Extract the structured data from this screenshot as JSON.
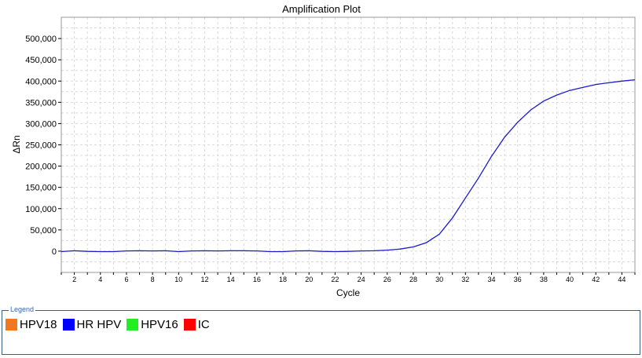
{
  "chart_data": {
    "type": "line",
    "title": "Amplification Plot",
    "xlabel": "Cycle",
    "ylabel": "ΔRn",
    "xlim": [
      1,
      45
    ],
    "ylim": [
      -50000,
      550000
    ],
    "x_ticks": [
      2,
      4,
      6,
      8,
      10,
      12,
      14,
      16,
      18,
      20,
      22,
      24,
      26,
      28,
      30,
      32,
      34,
      36,
      38,
      40,
      42,
      44
    ],
    "y_ticks": [
      0,
      50000,
      100000,
      150000,
      200000,
      250000,
      300000,
      350000,
      400000,
      450000,
      500000
    ],
    "y_tick_labels": [
      "0",
      "50,000",
      "100,000",
      "150,000",
      "200,000",
      "250,000",
      "300,000",
      "350,000",
      "400,000",
      "450,000",
      "500,000"
    ],
    "grid": true,
    "series": [
      {
        "name": "HR HPV",
        "color": "#1a1acc",
        "x": [
          1,
          2,
          3,
          4,
          5,
          6,
          7,
          8,
          9,
          10,
          11,
          12,
          13,
          14,
          15,
          16,
          17,
          18,
          19,
          20,
          21,
          22,
          23,
          24,
          25,
          26,
          27,
          28,
          29,
          30,
          31,
          32,
          33,
          34,
          35,
          36,
          37,
          38,
          39,
          40,
          41,
          42,
          43,
          44,
          45
        ],
        "values": [
          -1000,
          1000,
          -500,
          -1000,
          -1000,
          500,
          1000,
          500,
          1000,
          -1000,
          500,
          1000,
          500,
          1000,
          1000,
          500,
          -1000,
          -1000,
          500,
          1000,
          -500,
          -1000,
          -500,
          500,
          1000,
          2500,
          5000,
          10000,
          20000,
          40000,
          78000,
          125000,
          172000,
          223000,
          268000,
          303000,
          332000,
          353000,
          367000,
          378000,
          385000,
          392000,
          396000,
          400000,
          403000
        ]
      }
    ]
  },
  "legend": {
    "title": "Legend",
    "items": [
      {
        "label": "HPV18",
        "color": "#f07820"
      },
      {
        "label": "HR HPV",
        "color": "#0000ff"
      },
      {
        "label": "HPV16",
        "color": "#22ee22"
      },
      {
        "label": "IC",
        "color": "#ff0000"
      }
    ]
  }
}
